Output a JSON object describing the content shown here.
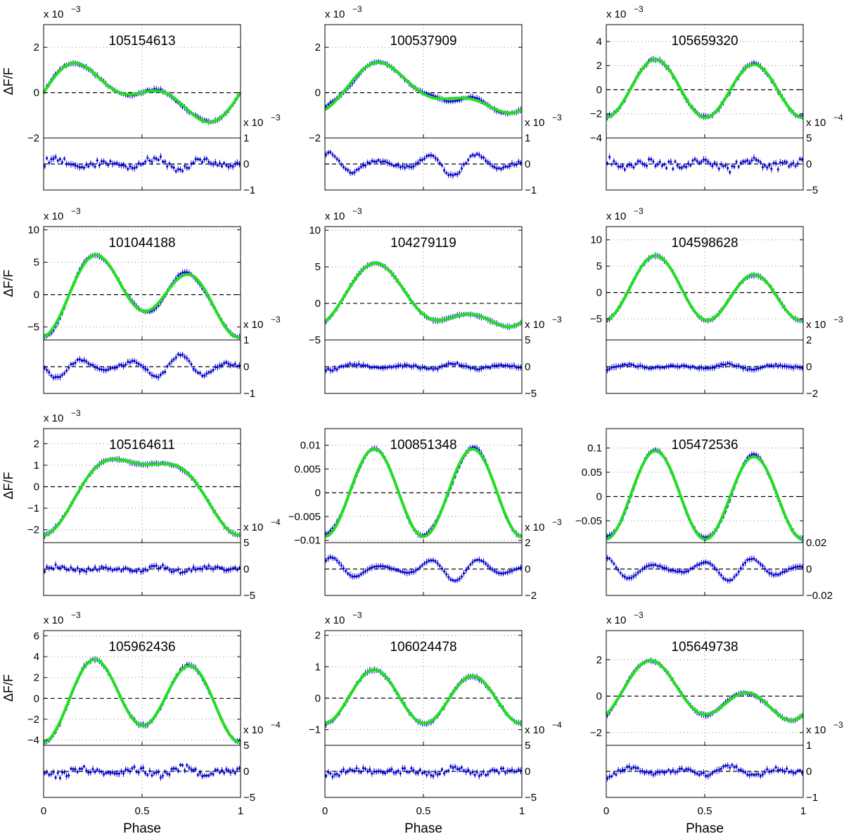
{
  "figure": {
    "ylabel": "ΔF/F",
    "xlabel": "Phase",
    "colors": {
      "data": "#0000cc",
      "model": "#22dd22",
      "axis": "#000000",
      "grid": "#888888"
    }
  },
  "chart_data": [
    {
      "type": "scatter",
      "title": "105154613",
      "exp": "x 10",
      "exp_pow": "−3",
      "ylim": [
        -2,
        3
      ],
      "yticks": [
        2,
        0,
        -2
      ],
      "yticklabels": [
        "2",
        "0",
        "−2"
      ],
      "model": {
        "c": 0,
        "a1": 0,
        "b1": 0.9,
        "a2": 0,
        "b2": 0.6
      },
      "res": {
        "exp": "x 10",
        "exp_pow": "−3",
        "ylim": [
          -1,
          1
        ],
        "yticks": [
          1,
          0,
          -1
        ],
        "yticklabels": [
          "1",
          "0",
          "−1"
        ],
        "amp": 0.25,
        "noise": 0.25
      }
    },
    {
      "type": "scatter",
      "title": "100537909",
      "exp": "x 10",
      "exp_pow": "−3",
      "ylim": [
        -2,
        3
      ],
      "yticks": [
        2,
        0,
        -2
      ],
      "yticklabels": [
        "2",
        "0",
        "−2"
      ],
      "model": {
        "c": 0.05,
        "a1": -0.35,
        "b1": 0.8,
        "a2": -0.45,
        "b2": 0
      },
      "res": {
        "exp": "x 10",
        "exp_pow": "−3",
        "ylim": [
          -1,
          1
        ],
        "yticks": [
          1,
          0,
          -1
        ],
        "yticklabels": [
          "1",
          "0",
          "−1"
        ],
        "amp": 0.45,
        "noise": 0.1
      }
    },
    {
      "type": "scatter",
      "title": "105659320",
      "exp": "x 10",
      "exp_pow": "−3",
      "ylim": [
        -4,
        5.4
      ],
      "yticks": [
        4,
        2,
        0,
        -2,
        -4
      ],
      "yticklabels": [
        "4",
        "2",
        "0",
        "−2",
        "−4"
      ],
      "model": {
        "c": 0,
        "a1": 0,
        "b1": 0.2,
        "a2": -2.3,
        "b2": 0
      },
      "res": {
        "exp": "x 10",
        "exp_pow": "−4",
        "ylim": [
          -5,
          5
        ],
        "yticks": [
          5,
          0,
          -5
        ],
        "yticklabels": [
          "5",
          "0",
          "−5"
        ],
        "amp": 1,
        "noise": 1.5
      }
    },
    {
      "type": "scatter",
      "title": "101044188",
      "exp": "x 10",
      "exp_pow": "−3",
      "ylim": [
        -7,
        10.5
      ],
      "yticks": [
        10,
        5,
        0,
        -5
      ],
      "yticklabels": [
        "10",
        "5",
        "0",
        "−5"
      ],
      "model": {
        "c": 0,
        "a1": -2,
        "b1": 1.5,
        "a2": -4.5,
        "b2": 0
      },
      "res": {
        "exp": "x 10",
        "exp_pow": "−3",
        "ylim": [
          -1,
          1
        ],
        "yticks": [
          1,
          0,
          -1
        ],
        "yticklabels": [
          "1",
          "0",
          "−1"
        ],
        "amp": 0.45,
        "noise": 0.1
      }
    },
    {
      "type": "scatter",
      "title": "104279119",
      "exp": "x 10",
      "exp_pow": "−3",
      "ylim": [
        -5,
        10.5
      ],
      "yticks": [
        10,
        5,
        0,
        -5
      ],
      "yticklabels": [
        "10",
        "5",
        "0",
        "−5"
      ],
      "model": {
        "c": 0,
        "a1": -0.5,
        "b1": 3.5,
        "a2": -2,
        "b2": 0
      },
      "res": {
        "exp": "x 10",
        "exp_pow": "−3",
        "ylim": [
          -5,
          5
        ],
        "yticks": [
          5,
          0,
          -5
        ],
        "yticklabels": [
          "5",
          "0",
          "−5"
        ],
        "amp": 0.6,
        "noise": 0.4
      }
    },
    {
      "type": "scatter",
      "title": "104598628",
      "exp": "x 10",
      "exp_pow": "−3",
      "ylim": [
        -9,
        12.5
      ],
      "yticks": [
        10,
        5,
        0,
        -5
      ],
      "yticklabels": [
        "10",
        "5",
        "0",
        "−5"
      ],
      "model": {
        "c": 0,
        "a1": 0,
        "b1": 1.8,
        "a2": -5.2,
        "b2": 0
      },
      "res": {
        "exp": "x 10",
        "exp_pow": "−3",
        "ylim": [
          -2,
          2
        ],
        "yticks": [
          2,
          0,
          -2
        ],
        "yticklabels": [
          "2",
          "0",
          "−2"
        ],
        "amp": 0.2,
        "noise": 0.15
      }
    },
    {
      "type": "scatter",
      "title": "105164611",
      "exp": "x 10",
      "exp_pow": "−3",
      "ylim": [
        -2.6,
        2.7
      ],
      "yticks": [
        2,
        1,
        0,
        -1,
        -2
      ],
      "yticklabels": [
        "2",
        "1",
        "0",
        "−1",
        "−2"
      ],
      "model": {
        "c": 0,
        "a1": -1.65,
        "b1": 0.15,
        "a2": -0.6,
        "b2": 0
      },
      "res": {
        "exp": "x 10",
        "exp_pow": "−4",
        "ylim": [
          -5,
          5
        ],
        "yticks": [
          5,
          0,
          -5
        ],
        "yticklabels": [
          "5",
          "0",
          "−5"
        ],
        "amp": 0.5,
        "noise": 0.8
      }
    },
    {
      "type": "scatter",
      "title": "100851348",
      "exp": "",
      "exp_pow": "",
      "ylim": [
        -0.0105,
        0.0135
      ],
      "yticks": [
        0.01,
        0.005,
        0,
        -0.005,
        -0.01
      ],
      "yticklabels": [
        "0.01",
        "0.005",
        "0",
        "−0.005",
        "−0.01"
      ],
      "model": {
        "c": 0,
        "a1": 0,
        "b1": 0,
        "a2": -0.0092,
        "b2": 0
      },
      "res": {
        "exp": "x 10",
        "exp_pow": "−3",
        "ylim": [
          -2,
          2
        ],
        "yticks": [
          2,
          0,
          -2
        ],
        "yticklabels": [
          "2",
          "0",
          "−2"
        ],
        "amp": 0.9,
        "noise": 0.05
      }
    },
    {
      "type": "scatter",
      "title": "105472536",
      "exp": "",
      "exp_pow": "",
      "ylim": [
        -0.095,
        0.14
      ],
      "yticks": [
        0.1,
        0.05,
        0,
        -0.05
      ],
      "yticklabels": [
        "0.1",
        "0.05",
        "0",
        "−0.05"
      ],
      "model": {
        "c": 0,
        "a1": 0,
        "b1": 0.006,
        "a2": -0.088,
        "b2": 0
      },
      "res": {
        "exp": "",
        "exp_pow": "",
        "ylim": [
          -0.02,
          0.02
        ],
        "yticks": [
          0.02,
          0,
          -0.02
        ],
        "yticklabels": [
          "0.02",
          "0",
          "−0.02"
        ],
        "amp": 0.009,
        "noise": 0.001
      }
    },
    {
      "type": "scatter",
      "title": "105962436",
      "exp": "x 10",
      "exp_pow": "−3",
      "ylim": [
        -4.5,
        6.5
      ],
      "yticks": [
        6,
        4,
        2,
        0,
        -2,
        -4
      ],
      "yticklabels": [
        "6",
        "4",
        "2",
        "0",
        "−2",
        "−4"
      ],
      "model": {
        "c": 0,
        "a1": -0.8,
        "b1": 0.3,
        "a2": -3.4,
        "b2": 0
      },
      "res": {
        "exp": "x 10",
        "exp_pow": "−4",
        "ylim": [
          -5,
          5
        ],
        "yticks": [
          5,
          0,
          -5
        ],
        "yticklabels": [
          "5",
          "0",
          "−5"
        ],
        "amp": 0.8,
        "noise": 1.2
      }
    },
    {
      "type": "scatter",
      "title": "106024478",
      "exp": "x 10",
      "exp_pow": "−3",
      "ylim": [
        -1.5,
        2.15
      ],
      "yticks": [
        2,
        1,
        0,
        -1
      ],
      "yticklabels": [
        "2",
        "1",
        "0",
        "−1"
      ],
      "model": {
        "c": 0,
        "a1": 0,
        "b1": 0.1,
        "a2": -0.8,
        "b2": 0
      },
      "res": {
        "exp": "x 10",
        "exp_pow": "−4",
        "ylim": [
          -5,
          5
        ],
        "yticks": [
          5,
          0,
          -5
        ],
        "yticklabels": [
          "5",
          "0",
          "−5"
        ],
        "amp": 0.6,
        "noise": 1
      }
    },
    {
      "type": "scatter",
      "title": "105649738",
      "exp": "x 10",
      "exp_pow": "−3",
      "ylim": [
        -2.7,
        3.6
      ],
      "yticks": [
        2,
        0,
        -2
      ],
      "yticklabels": [
        "2",
        "0",
        "−2"
      ],
      "model": {
        "c": 0,
        "a1": 0,
        "b1": 0.9,
        "a2": -1,
        "b2": 0.4
      },
      "res": {
        "exp": "x 10",
        "exp_pow": "−3",
        "ylim": [
          -1,
          1
        ],
        "yticks": [
          1,
          0,
          -1
        ],
        "yticklabels": [
          "1",
          "0",
          "−1"
        ],
        "amp": 0.2,
        "noise": 0.15
      }
    }
  ]
}
